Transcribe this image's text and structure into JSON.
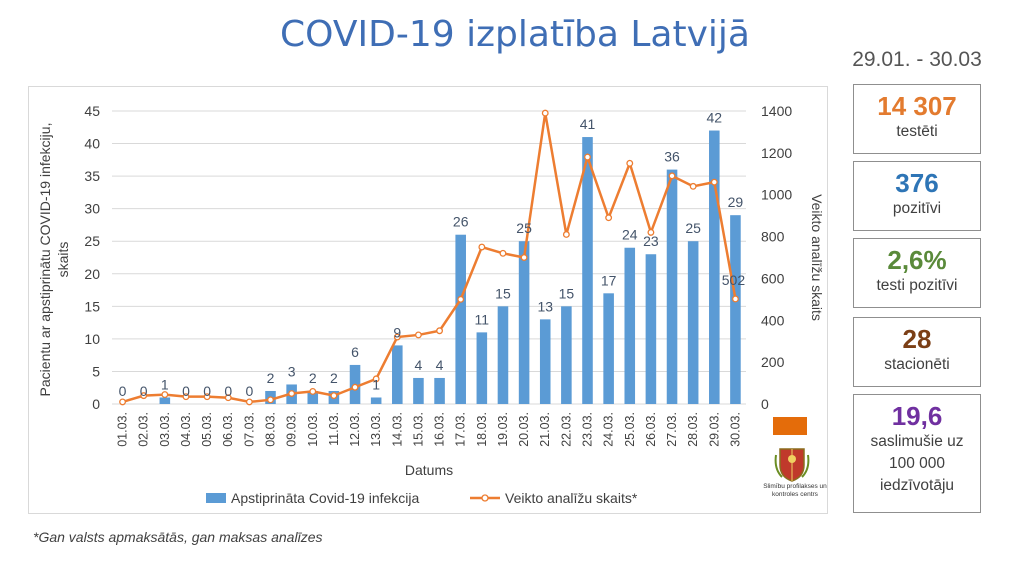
{
  "title": "COVID-19 izplatība Latvijā",
  "period": "29.01. - 30.03",
  "stats": [
    {
      "value": "14 307",
      "label": "testēti",
      "color": "#E37B2F"
    },
    {
      "value": "376",
      "label": "pozitīvi",
      "color": "#2E75B6"
    },
    {
      "value": "2,6%",
      "label": "testi pozitīvi",
      "color": "#5A8A3A"
    },
    {
      "value": "28",
      "label": "stacionēti",
      "color": "#7B3F16"
    },
    {
      "value": "19,6",
      "label": "saslimušie uz 100 000 iedzīvotāju",
      "color": "#7030A0"
    }
  ],
  "footnote": "*Gan valsts apmaksātās, gan maksas analīzes",
  "logo_text": "Slimību profilakses un kontroles centrs",
  "chart_data": {
    "type": "bar",
    "categories": [
      "01.03.",
      "02.03.",
      "03.03.",
      "04.03.",
      "05.03.",
      "06.03.",
      "07.03.",
      "08.03.",
      "09.03.",
      "10.03.",
      "11.03.",
      "12.03.",
      "13.03.",
      "14.03.",
      "15.03.",
      "16.03.",
      "17.03.",
      "18.03.",
      "19.03.",
      "20.03.",
      "21.03.",
      "22.03.",
      "23.03.",
      "24.03.",
      "25.03.",
      "26.03.",
      "27.03.",
      "28.03.",
      "29.03.",
      "30.03."
    ],
    "series": [
      {
        "name": "Apstiprināta Covid-19 infekcija",
        "type": "bar",
        "axis": "left",
        "color": "#5B9BD5",
        "values": [
          0,
          0,
          1,
          0,
          0,
          0,
          0,
          2,
          3,
          2,
          2,
          6,
          1,
          9,
          4,
          4,
          26,
          11,
          15,
          25,
          13,
          15,
          41,
          17,
          24,
          23,
          36,
          25,
          42,
          29
        ]
      },
      {
        "name": "Veikto analīžu skaits*",
        "type": "line",
        "axis": "right",
        "color": "#ED7D31",
        "values": [
          10,
          40,
          45,
          35,
          35,
          30,
          10,
          20,
          50,
          60,
          40,
          80,
          120,
          320,
          330,
          350,
          500,
          750,
          720,
          700,
          1390,
          810,
          1180,
          890,
          1150,
          820,
          1090,
          1040,
          1060,
          502
        ],
        "labeled_points": {
          "29": "502"
        }
      }
    ],
    "xlabel": "Datums",
    "ylabel": "Pacientu ar apstiprinātu COVID-19 infekciju, skaits",
    "y2label": "Veikto analīžu skaits",
    "ylim": [
      0,
      45
    ],
    "yticks": [
      0,
      5,
      10,
      15,
      20,
      25,
      30,
      35,
      40,
      45
    ],
    "y2lim": [
      0,
      1400
    ],
    "y2ticks": [
      0,
      200,
      400,
      600,
      800,
      1000,
      1200,
      1400
    ],
    "grid": true,
    "legend": "bottom"
  }
}
